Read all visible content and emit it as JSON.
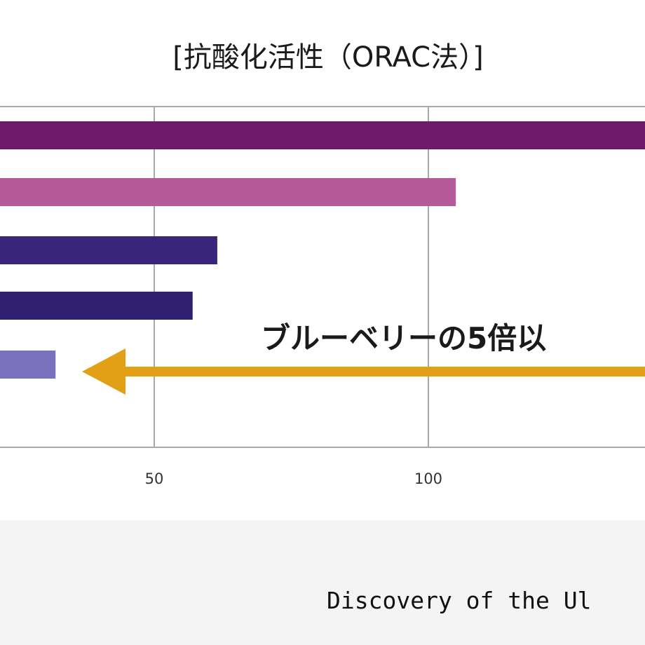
{
  "chart_data": {
    "type": "bar",
    "orientation": "horizontal",
    "title": "[抗酸化活性（ORAC法）]",
    "xlabel": "",
    "ylabel": "",
    "xlim": [
      -6,
      181
    ],
    "x_ticks": [
      50,
      100
    ],
    "grid": true,
    "categories": [
      "",
      "",
      "",
      "",
      ""
    ],
    "series": [
      {
        "values": [
          181,
          105,
          61.5,
          57,
          32
        ],
        "colors": [
          "#6e1a6b",
          "#b45a9b",
          "#39257a",
          "#2f1f70",
          "#7b72be"
        ]
      }
    ]
  },
  "annotation": {
    "text": "ブルーベリーの5倍以",
    "arrow_from_value": 181,
    "arrow_to_value": 33,
    "arrow_color": "#e2a017"
  },
  "caption": {
    "text": "Discovery of the Ul"
  },
  "colors": {
    "background": "#ffffff",
    "footer_band": "#f4f4f4",
    "grid": "#a8a8a8"
  }
}
